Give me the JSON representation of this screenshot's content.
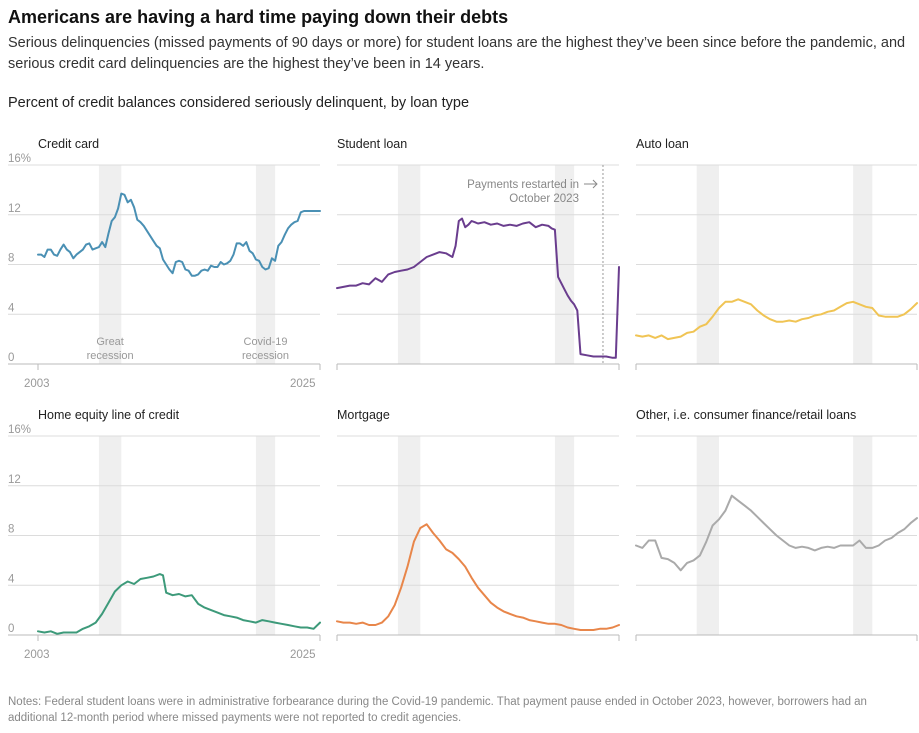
{
  "header": {
    "title": "Americans are having a hard time paying down their debts",
    "subtitle": "Serious delinquencies (missed payments of 90 days or more) for student loans are the highest they’ve been since before the pandemic, and serious credit card delinquencies are the highest they’ve been in 14 years.",
    "section_title": "Percent of credit balances considered seriously delinquent, by loan type"
  },
  "notes": "Notes: Federal student loans were in administrative forbearance during the Covid-19 pandemic. That payment pause ended in October 2023, however, borrowers had an additional 12-month period where missed payments were not reported to credit agencies.",
  "colors": {
    "credit_card": "#4a90b4",
    "student_loan": "#6a3d8e",
    "auto_loan": "#f0c454",
    "heloc": "#3d9a7a",
    "mortgage": "#e8864a",
    "other": "#aaaaaa",
    "shade": "#efefef",
    "grid": "#dcdcdc",
    "axis_text": "#999999"
  },
  "chart_data": [
    {
      "type": "line",
      "title": "Credit card",
      "series_key": "credit_card",
      "ylim": [
        0,
        16
      ],
      "yticks": [
        "0",
        "4",
        "8",
        "12",
        "16%"
      ],
      "xlim": [
        2003,
        2025
      ],
      "xtick_labels": [
        "2003",
        "2025"
      ],
      "recessions": [
        {
          "start": 2007.75,
          "end": 2009.5,
          "label": "Great recession"
        },
        {
          "start": 2020.0,
          "end": 2021.5,
          "label": "Covid-19 recession"
        }
      ],
      "x": [
        2003.0,
        2003.25,
        2003.5,
        2003.75,
        2004.0,
        2004.25,
        2004.5,
        2004.75,
        2005.0,
        2005.25,
        2005.5,
        2005.75,
        2006.0,
        2006.25,
        2006.5,
        2006.75,
        2007.0,
        2007.25,
        2007.5,
        2007.75,
        2008.0,
        2008.25,
        2008.5,
        2008.75,
        2009.0,
        2009.25,
        2009.5,
        2009.75,
        2010.0,
        2010.25,
        2010.5,
        2010.75,
        2011.0,
        2011.25,
        2011.5,
        2011.75,
        2012.0,
        2012.25,
        2012.5,
        2012.75,
        2013.0,
        2013.25,
        2013.5,
        2013.75,
        2014.0,
        2014.25,
        2014.5,
        2014.75,
        2015.0,
        2015.25,
        2015.5,
        2015.75,
        2016.0,
        2016.25,
        2016.5,
        2016.75,
        2017.0,
        2017.25,
        2017.5,
        2017.75,
        2018.0,
        2018.25,
        2018.5,
        2018.75,
        2019.0,
        2019.25,
        2019.5,
        2019.75,
        2020.0,
        2020.25,
        2020.5,
        2020.75,
        2021.0,
        2021.25,
        2021.5,
        2021.75,
        2022.0,
        2022.25,
        2022.5,
        2022.75,
        2023.0,
        2023.25,
        2023.5,
        2023.75,
        2024.0,
        2024.25,
        2024.5,
        2024.75,
        2025.0
      ],
      "values": [
        8.8,
        8.8,
        8.6,
        9.2,
        9.2,
        8.8,
        8.7,
        9.2,
        9.6,
        9.2,
        9.0,
        8.5,
        8.8,
        9.0,
        9.2,
        9.6,
        9.7,
        9.2,
        9.3,
        9.4,
        9.8,
        9.4,
        10.5,
        11.5,
        11.8,
        12.5,
        13.7,
        13.6,
        13.0,
        13.2,
        12.6,
        11.6,
        11.4,
        11.1,
        10.7,
        10.3,
        9.9,
        9.5,
        9.3,
        8.4,
        8.0,
        7.6,
        7.3,
        8.2,
        8.3,
        8.2,
        7.6,
        7.5,
        7.1,
        7.1,
        7.2,
        7.5,
        7.6,
        7.5,
        7.9,
        7.8,
        7.8,
        8.2,
        8.0,
        8.1,
        8.3,
        8.8,
        9.7,
        9.7,
        9.5,
        9.8,
        9.1,
        8.9,
        8.4,
        8.3,
        7.8,
        7.6,
        7.7,
        8.5,
        8.3,
        9.5,
        9.8,
        10.4,
        10.9,
        11.2,
        11.4,
        11.5,
        12.2,
        12.3,
        12.3,
        12.3,
        12.3,
        12.3,
        12.3
      ]
    },
    {
      "type": "line",
      "title": "Student loan",
      "series_key": "student_loan",
      "ylim": [
        0,
        16
      ],
      "xlim": [
        2003,
        2025
      ],
      "recessions": [
        {
          "start": 2007.75,
          "end": 2009.5
        },
        {
          "start": 2020.0,
          "end": 2021.5
        }
      ],
      "annotation": {
        "text_lines": [
          "Payments restarted in",
          "October 2023"
        ],
        "x": 2023.75
      },
      "x": [
        2003.0,
        2003.5,
        2004.0,
        2004.5,
        2005.0,
        2005.5,
        2006.0,
        2006.5,
        2007.0,
        2007.5,
        2008.0,
        2008.5,
        2009.0,
        2009.5,
        2010.0,
        2010.5,
        2011.0,
        2011.5,
        2012.0,
        2012.25,
        2012.5,
        2012.75,
        2013.0,
        2013.25,
        2013.5,
        2013.75,
        2014.0,
        2014.5,
        2015.0,
        2015.5,
        2016.0,
        2016.5,
        2017.0,
        2017.5,
        2018.0,
        2018.5,
        2019.0,
        2019.5,
        2019.75,
        2020.0,
        2020.25,
        2020.5,
        2020.75,
        2021.0,
        2021.25,
        2021.5,
        2021.75,
        2022.0,
        2022.5,
        2023.0,
        2023.5,
        2024.0,
        2024.5,
        2024.75,
        2025.0
      ],
      "values": [
        6.1,
        6.2,
        6.3,
        6.3,
        6.5,
        6.4,
        6.9,
        6.6,
        7.2,
        7.4,
        7.5,
        7.6,
        7.8,
        8.2,
        8.6,
        8.8,
        9.0,
        8.9,
        8.6,
        9.5,
        11.5,
        11.7,
        11.0,
        11.2,
        11.5,
        11.4,
        11.3,
        11.4,
        11.2,
        11.3,
        11.1,
        11.2,
        11.1,
        11.3,
        11.4,
        11.0,
        11.2,
        11.1,
        10.9,
        10.8,
        7.0,
        6.5,
        6.0,
        5.5,
        5.1,
        4.8,
        4.3,
        0.8,
        0.7,
        0.6,
        0.6,
        0.6,
        0.5,
        0.5,
        7.8
      ]
    },
    {
      "type": "line",
      "title": "Auto loan",
      "series_key": "auto_loan",
      "ylim": [
        0,
        16
      ],
      "xlim": [
        2003,
        2025
      ],
      "recessions": [
        {
          "start": 2007.75,
          "end": 2009.5
        },
        {
          "start": 2020.0,
          "end": 2021.5
        }
      ],
      "x": [
        2003.0,
        2003.5,
        2004.0,
        2004.5,
        2005.0,
        2005.5,
        2006.0,
        2006.5,
        2007.0,
        2007.5,
        2008.0,
        2008.5,
        2009.0,
        2009.5,
        2010.0,
        2010.5,
        2011.0,
        2011.5,
        2012.0,
        2012.5,
        2013.0,
        2013.5,
        2014.0,
        2014.5,
        2015.0,
        2015.5,
        2016.0,
        2016.5,
        2017.0,
        2017.5,
        2018.0,
        2018.5,
        2019.0,
        2019.5,
        2020.0,
        2020.5,
        2021.0,
        2021.5,
        2022.0,
        2022.5,
        2023.0,
        2023.5,
        2024.0,
        2024.5,
        2025.0
      ],
      "values": [
        2.3,
        2.2,
        2.3,
        2.1,
        2.3,
        2.0,
        2.1,
        2.2,
        2.5,
        2.6,
        3.0,
        3.2,
        3.8,
        4.5,
        5.0,
        5.0,
        5.2,
        5.0,
        4.8,
        4.3,
        3.9,
        3.6,
        3.4,
        3.4,
        3.5,
        3.4,
        3.6,
        3.7,
        3.9,
        4.0,
        4.2,
        4.3,
        4.6,
        4.9,
        5.0,
        4.8,
        4.6,
        4.5,
        3.9,
        3.8,
        3.8,
        3.8,
        4.0,
        4.4,
        4.9
      ]
    },
    {
      "type": "line",
      "title": "Home equity line of credit",
      "series_key": "heloc",
      "ylim": [
        0,
        16
      ],
      "yticks": [
        "0",
        "4",
        "8",
        "12",
        "16%"
      ],
      "xlim": [
        2003,
        2025
      ],
      "xtick_labels": [
        "2003",
        "2025"
      ],
      "recessions": [
        {
          "start": 2007.75,
          "end": 2009.5
        },
        {
          "start": 2020.0,
          "end": 2021.5
        }
      ],
      "x": [
        2003.0,
        2003.5,
        2004.0,
        2004.5,
        2005.0,
        2005.5,
        2006.0,
        2006.5,
        2007.0,
        2007.5,
        2008.0,
        2008.5,
        2009.0,
        2009.5,
        2010.0,
        2010.5,
        2011.0,
        2011.5,
        2012.0,
        2012.5,
        2012.75,
        2013.0,
        2013.5,
        2014.0,
        2014.5,
        2015.0,
        2015.5,
        2016.0,
        2016.5,
        2017.0,
        2017.5,
        2018.0,
        2018.5,
        2019.0,
        2019.5,
        2020.0,
        2020.5,
        2021.0,
        2021.5,
        2022.0,
        2022.5,
        2023.0,
        2023.5,
        2024.0,
        2024.5,
        2025.0
      ],
      "values": [
        0.3,
        0.2,
        0.3,
        0.1,
        0.2,
        0.2,
        0.2,
        0.5,
        0.7,
        1.0,
        1.7,
        2.6,
        3.5,
        4.0,
        4.3,
        4.1,
        4.5,
        4.6,
        4.7,
        4.9,
        4.8,
        3.4,
        3.2,
        3.3,
        3.1,
        3.2,
        2.5,
        2.2,
        2.0,
        1.8,
        1.6,
        1.5,
        1.4,
        1.2,
        1.1,
        1.0,
        1.2,
        1.1,
        1.0,
        0.9,
        0.8,
        0.7,
        0.6,
        0.6,
        0.5,
        1.0
      ]
    },
    {
      "type": "line",
      "title": "Mortgage",
      "series_key": "mortgage",
      "ylim": [
        0,
        16
      ],
      "xlim": [
        2003,
        2025
      ],
      "recessions": [
        {
          "start": 2007.75,
          "end": 2009.5
        },
        {
          "start": 2020.0,
          "end": 2021.5
        }
      ],
      "x": [
        2003.0,
        2003.5,
        2004.0,
        2004.5,
        2005.0,
        2005.5,
        2006.0,
        2006.5,
        2007.0,
        2007.5,
        2008.0,
        2008.5,
        2009.0,
        2009.5,
        2010.0,
        2010.5,
        2011.0,
        2011.5,
        2012.0,
        2012.5,
        2013.0,
        2013.5,
        2014.0,
        2014.5,
        2015.0,
        2015.5,
        2016.0,
        2016.5,
        2017.0,
        2017.5,
        2018.0,
        2018.5,
        2019.0,
        2019.5,
        2020.0,
        2020.5,
        2021.0,
        2021.5,
        2022.0,
        2022.5,
        2023.0,
        2023.5,
        2024.0,
        2024.5,
        2025.0
      ],
      "values": [
        1.1,
        1.0,
        1.0,
        0.9,
        1.0,
        0.8,
        0.8,
        1.0,
        1.5,
        2.4,
        3.8,
        5.5,
        7.5,
        8.6,
        8.9,
        8.2,
        7.6,
        6.9,
        6.6,
        6.1,
        5.5,
        4.6,
        3.8,
        3.2,
        2.6,
        2.2,
        1.9,
        1.7,
        1.5,
        1.4,
        1.2,
        1.1,
        1.0,
        0.9,
        0.9,
        0.8,
        0.6,
        0.5,
        0.4,
        0.4,
        0.4,
        0.5,
        0.5,
        0.6,
        0.8
      ]
    },
    {
      "type": "line",
      "title": "Other, i.e. consumer finance/retail loans",
      "series_key": "other",
      "ylim": [
        0,
        16
      ],
      "xlim": [
        2003,
        2025
      ],
      "recessions": [
        {
          "start": 2007.75,
          "end": 2009.5
        },
        {
          "start": 2020.0,
          "end": 2021.5
        }
      ],
      "x": [
        2003.0,
        2003.5,
        2004.0,
        2004.5,
        2005.0,
        2005.5,
        2006.0,
        2006.5,
        2007.0,
        2007.5,
        2008.0,
        2008.5,
        2009.0,
        2009.5,
        2010.0,
        2010.5,
        2011.0,
        2011.5,
        2012.0,
        2012.5,
        2013.0,
        2013.5,
        2014.0,
        2014.5,
        2015.0,
        2015.5,
        2016.0,
        2016.5,
        2017.0,
        2017.5,
        2018.0,
        2018.5,
        2019.0,
        2019.5,
        2020.0,
        2020.5,
        2021.0,
        2021.5,
        2022.0,
        2022.5,
        2023.0,
        2023.5,
        2024.0,
        2024.5,
        2025.0
      ],
      "values": [
        7.2,
        7.0,
        7.6,
        7.6,
        6.2,
        6.1,
        5.8,
        5.2,
        5.8,
        6.0,
        6.4,
        7.5,
        8.8,
        9.3,
        10.0,
        11.2,
        10.8,
        10.4,
        10.0,
        9.5,
        9.0,
        8.5,
        8.0,
        7.6,
        7.2,
        7.0,
        7.1,
        7.0,
        6.8,
        7.0,
        7.1,
        7.0,
        7.2,
        7.2,
        7.2,
        7.6,
        7.0,
        7.0,
        7.2,
        7.6,
        7.8,
        8.2,
        8.5,
        9.0,
        9.4
      ]
    }
  ]
}
